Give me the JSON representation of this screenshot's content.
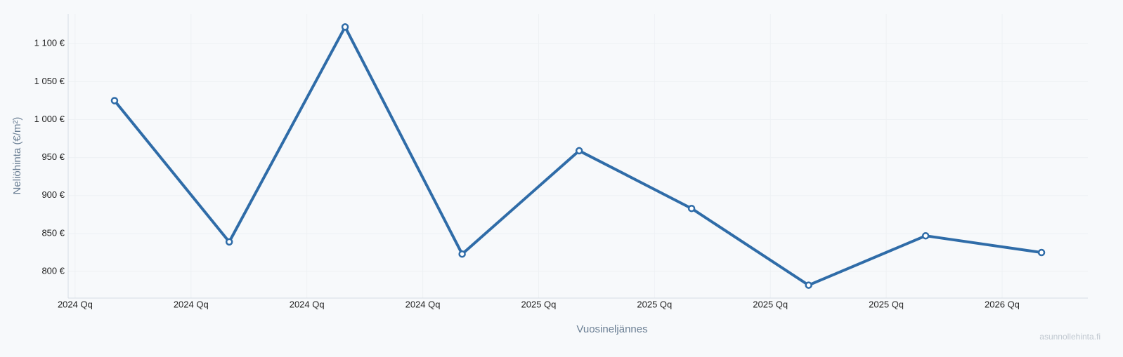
{
  "chart_data": {
    "type": "line",
    "x_label": "Vuosineljännes",
    "y_label": "Neliöhinta (€/m²)",
    "watermark": "asunnollehinta.fi",
    "x": [
      0.34,
      1.33,
      2.33,
      3.34,
      4.35,
      5.32,
      6.33,
      7.34,
      8.34
    ],
    "series": [
      {
        "color": "#2f6ca8",
        "values": [
          1025,
          839,
          1122,
          823,
          959,
          883,
          782,
          847,
          825
        ]
      }
    ],
    "xlim": [
      -0.06,
      8.74
    ],
    "xticks": [
      {
        "value": 0,
        "label": "2024 Qq"
      },
      {
        "value": 1,
        "label": "2024 Qq"
      },
      {
        "value": 2,
        "label": "2024 Qq"
      },
      {
        "value": 3,
        "label": "2024 Qq"
      },
      {
        "value": 4,
        "label": "2025 Qq"
      },
      {
        "value": 5,
        "label": "2025 Qq"
      },
      {
        "value": 6,
        "label": "2025 Qq"
      },
      {
        "value": 7,
        "label": "2025 Qq"
      },
      {
        "value": 8,
        "label": "2026 Qq"
      }
    ],
    "ylim": [
      765,
      1139
    ],
    "yticks": [
      {
        "value": 800,
        "label": "800 €"
      },
      {
        "value": 850,
        "label": "850 €"
      },
      {
        "value": 900,
        "label": "900 €"
      },
      {
        "value": 950,
        "label": "950 €"
      },
      {
        "value": 1000,
        "label": "1 000 €"
      },
      {
        "value": 1050,
        "label": "1 050 €"
      },
      {
        "value": 1100,
        "label": "1 100 €"
      }
    ],
    "grid": true
  }
}
